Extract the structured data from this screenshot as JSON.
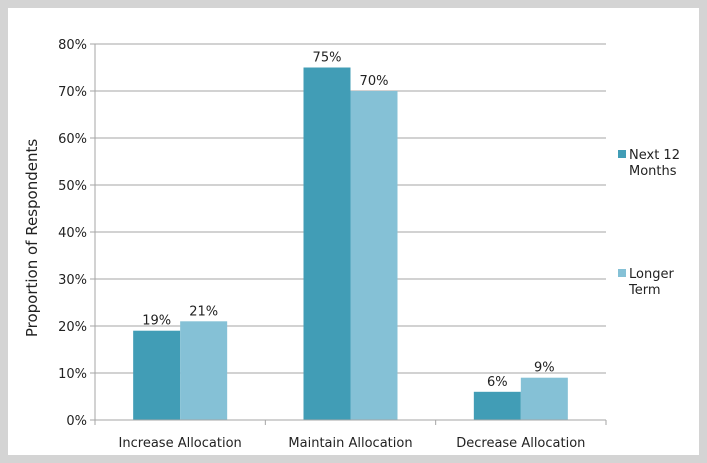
{
  "chart_data": {
    "type": "bar",
    "title": "",
    "xlabel": "",
    "ylabel": "Proportion of Respondents",
    "categories": [
      "Increase Allocation",
      "Maintain Allocation",
      "Decrease Allocation"
    ],
    "series": [
      {
        "name_lines": [
          "Next 12",
          "Months"
        ],
        "color": "#419db6",
        "values": [
          19,
          75,
          6
        ],
        "labels": [
          "19%",
          "75%",
          "6%"
        ]
      },
      {
        "name_lines": [
          "Longer",
          "Term"
        ],
        "color": "#85c1d6",
        "values": [
          21,
          70,
          9
        ],
        "labels": [
          "21%",
          "70%",
          "9%"
        ]
      }
    ],
    "ylim": [
      0,
      80
    ],
    "yticks": [
      0,
      10,
      20,
      30,
      40,
      50,
      60,
      70,
      80
    ],
    "ytick_labels": [
      "0%",
      "10%",
      "20%",
      "30%",
      "40%",
      "50%",
      "60%",
      "70%",
      "80%"
    ],
    "grid": true,
    "legend_position": "right"
  }
}
